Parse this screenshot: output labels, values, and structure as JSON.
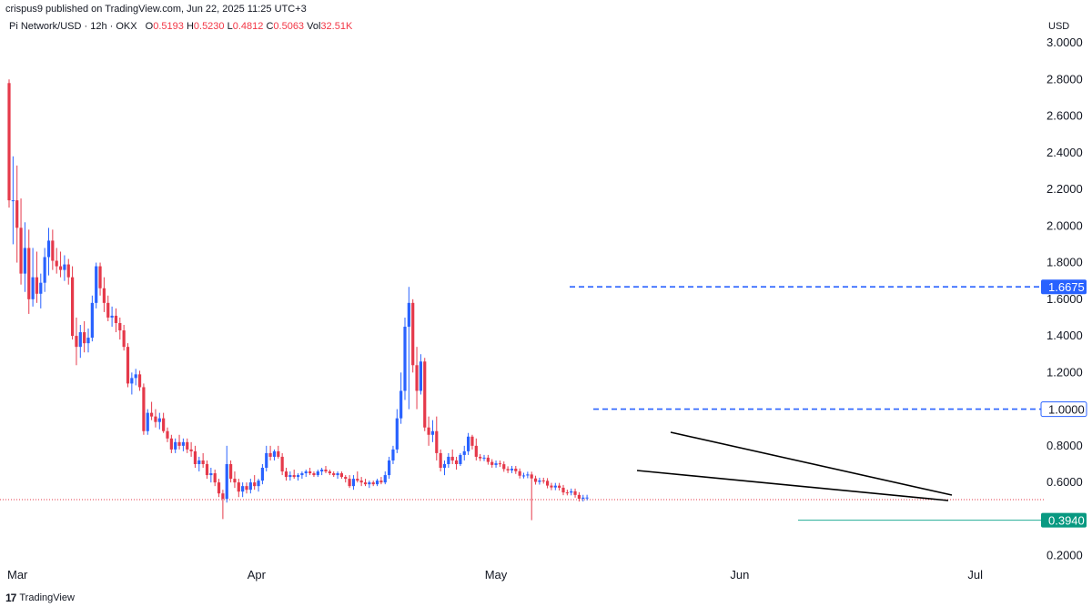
{
  "header": {
    "published": "crispus9 published on TradingView.com, Jun 22, 2025 11:25 UTC+3"
  },
  "legend": {
    "symbol": "Pi Network/USD · 12h · OKX",
    "o_key": "O",
    "o_val": "0.5193",
    "h_key": "H",
    "h_val": "0.5230",
    "l_key": "L",
    "l_val": "0.4812",
    "c_key": "C",
    "c_val": "0.5063",
    "vol_key": "Vol",
    "vol_val": "32.51K"
  },
  "footer": {
    "brand": "TradingView",
    "logo_mark": "17"
  },
  "colors": {
    "up": "#2962ff",
    "down": "#e5394a",
    "dashed": "#2962ff",
    "support": "#22ab94",
    "tag_blue": "#2962ff",
    "tag_green": "#089981",
    "trendline": "#000000",
    "axis_text": "#131722"
  },
  "chart_data": {
    "type": "candlestick",
    "title": "Pi Network/USD · 12h · OKX",
    "ylabel": "USD",
    "ylim": [
      0.12,
      3.1
    ],
    "y_ticks": [
      "3.0000",
      "2.8000",
      "2.6000",
      "2.4000",
      "2.2000",
      "2.0000",
      "1.8000",
      "1.6000",
      "1.4000",
      "1.2000",
      "1.0000",
      "0.8000",
      "0.6000",
      "0.4000",
      "0.2000"
    ],
    "x_labels": [
      {
        "label": "Mar",
        "bar": 0
      },
      {
        "label": "Apr",
        "bar": 62
      },
      {
        "label": "May",
        "bar": 122
      },
      {
        "label": "Jun",
        "bar": 184
      },
      {
        "label": "Jul",
        "bar": 244
      }
    ],
    "candles": [
      [
        2.78,
        2.8,
        2.1,
        2.14
      ],
      [
        2.14,
        2.38,
        1.9,
        2.14
      ],
      [
        2.14,
        2.33,
        1.8,
        1.99
      ],
      [
        1.99,
        2.15,
        1.68,
        1.74
      ],
      [
        1.74,
        2.02,
        1.64,
        1.88
      ],
      [
        1.88,
        1.98,
        1.52,
        1.6
      ],
      [
        1.6,
        1.88,
        1.56,
        1.72
      ],
      [
        1.72,
        1.86,
        1.58,
        1.63
      ],
      [
        1.63,
        1.74,
        1.55,
        1.69
      ],
      [
        1.69,
        1.88,
        1.64,
        1.83
      ],
      [
        1.83,
        1.99,
        1.73,
        1.92
      ],
      [
        1.92,
        1.98,
        1.76,
        1.81
      ],
      [
        1.81,
        1.88,
        1.74,
        1.78
      ],
      [
        1.78,
        1.86,
        1.72,
        1.76
      ],
      [
        1.76,
        1.84,
        1.7,
        1.79
      ],
      [
        1.79,
        1.82,
        1.68,
        1.72
      ],
      [
        1.72,
        1.78,
        1.38,
        1.4
      ],
      [
        1.4,
        1.5,
        1.24,
        1.34
      ],
      [
        1.34,
        1.46,
        1.28,
        1.42
      ],
      [
        1.42,
        1.48,
        1.31,
        1.36
      ],
      [
        1.36,
        1.44,
        1.31,
        1.39
      ],
      [
        1.39,
        1.62,
        1.37,
        1.58
      ],
      [
        1.58,
        1.8,
        1.55,
        1.78
      ],
      [
        1.78,
        1.8,
        1.62,
        1.66
      ],
      [
        1.66,
        1.72,
        1.53,
        1.58
      ],
      [
        1.58,
        1.62,
        1.48,
        1.5
      ],
      [
        1.5,
        1.56,
        1.45,
        1.51
      ],
      [
        1.51,
        1.55,
        1.42,
        1.47
      ],
      [
        1.47,
        1.5,
        1.38,
        1.43
      ],
      [
        1.43,
        1.46,
        1.32,
        1.34
      ],
      [
        1.34,
        1.36,
        1.12,
        1.14
      ],
      [
        1.14,
        1.2,
        1.08,
        1.17
      ],
      [
        1.17,
        1.22,
        1.13,
        1.19
      ],
      [
        1.19,
        1.21,
        1.1,
        1.12
      ],
      [
        1.12,
        1.14,
        0.86,
        0.88
      ],
      [
        0.88,
        1.0,
        0.86,
        0.98
      ],
      [
        0.98,
        1.04,
        0.94,
        0.96
      ],
      [
        0.96,
        1.0,
        0.9,
        0.93
      ],
      [
        0.93,
        0.98,
        0.89,
        0.95
      ],
      [
        0.95,
        0.98,
        0.87,
        0.88
      ],
      [
        0.88,
        0.9,
        0.82,
        0.84
      ],
      [
        0.84,
        0.86,
        0.76,
        0.78
      ],
      [
        0.78,
        0.84,
        0.76,
        0.82
      ],
      [
        0.82,
        0.86,
        0.78,
        0.8
      ],
      [
        0.8,
        0.84,
        0.77,
        0.82
      ],
      [
        0.82,
        0.84,
        0.76,
        0.78
      ],
      [
        0.78,
        0.82,
        0.74,
        0.77
      ],
      [
        0.77,
        0.8,
        0.68,
        0.7
      ],
      [
        0.7,
        0.74,
        0.66,
        0.72
      ],
      [
        0.72,
        0.76,
        0.68,
        0.7
      ],
      [
        0.7,
        0.72,
        0.62,
        0.64
      ],
      [
        0.64,
        0.68,
        0.6,
        0.65
      ],
      [
        0.65,
        0.67,
        0.58,
        0.6
      ],
      [
        0.6,
        0.62,
        0.52,
        0.54
      ],
      [
        0.54,
        0.56,
        0.4,
        0.51
      ],
      [
        0.51,
        0.8,
        0.49,
        0.7
      ],
      [
        0.7,
        0.72,
        0.6,
        0.62
      ],
      [
        0.62,
        0.66,
        0.57,
        0.6
      ],
      [
        0.6,
        0.62,
        0.52,
        0.55
      ],
      [
        0.55,
        0.6,
        0.52,
        0.58
      ],
      [
        0.58,
        0.6,
        0.54,
        0.56
      ],
      [
        0.56,
        0.62,
        0.54,
        0.6
      ],
      [
        0.6,
        0.64,
        0.56,
        0.58
      ],
      [
        0.58,
        0.62,
        0.55,
        0.61
      ],
      [
        0.61,
        0.7,
        0.59,
        0.68
      ],
      [
        0.68,
        0.8,
        0.66,
        0.76
      ],
      [
        0.76,
        0.8,
        0.72,
        0.74
      ],
      [
        0.74,
        0.78,
        0.72,
        0.77
      ],
      [
        0.77,
        0.8,
        0.73,
        0.74
      ],
      [
        0.74,
        0.76,
        0.64,
        0.66
      ],
      [
        0.66,
        0.68,
        0.61,
        0.63
      ],
      [
        0.63,
        0.66,
        0.61,
        0.64
      ],
      [
        0.64,
        0.67,
        0.62,
        0.63
      ],
      [
        0.63,
        0.65,
        0.61,
        0.64
      ],
      [
        0.64,
        0.66,
        0.62,
        0.65
      ],
      [
        0.65,
        0.67,
        0.63,
        0.66
      ],
      [
        0.66,
        0.68,
        0.64,
        0.65
      ],
      [
        0.65,
        0.66,
        0.63,
        0.64
      ],
      [
        0.64,
        0.67,
        0.63,
        0.66
      ],
      [
        0.66,
        0.68,
        0.64,
        0.67
      ],
      [
        0.67,
        0.69,
        0.65,
        0.66
      ],
      [
        0.66,
        0.67,
        0.64,
        0.65
      ],
      [
        0.65,
        0.66,
        0.63,
        0.64
      ],
      [
        0.64,
        0.66,
        0.62,
        0.65
      ],
      [
        0.65,
        0.66,
        0.62,
        0.63
      ],
      [
        0.63,
        0.64,
        0.6,
        0.62
      ],
      [
        0.62,
        0.64,
        0.57,
        0.58
      ],
      [
        0.58,
        0.64,
        0.56,
        0.62
      ],
      [
        0.62,
        0.66,
        0.6,
        0.61
      ],
      [
        0.61,
        0.63,
        0.58,
        0.6
      ],
      [
        0.6,
        0.62,
        0.58,
        0.59
      ],
      [
        0.59,
        0.61,
        0.57,
        0.6
      ],
      [
        0.6,
        0.61,
        0.58,
        0.59
      ],
      [
        0.59,
        0.62,
        0.58,
        0.61
      ],
      [
        0.61,
        0.63,
        0.59,
        0.6
      ],
      [
        0.6,
        0.66,
        0.59,
        0.64
      ],
      [
        0.64,
        0.74,
        0.62,
        0.72
      ],
      [
        0.72,
        0.8,
        0.7,
        0.78
      ],
      [
        0.78,
        1.0,
        0.76,
        0.95
      ],
      [
        0.95,
        1.2,
        0.92,
        1.1
      ],
      [
        1.1,
        1.5,
        1.05,
        1.45
      ],
      [
        1.45,
        1.6675,
        1.0,
        1.58
      ],
      [
        1.58,
        1.6,
        1.2,
        1.24
      ],
      [
        1.24,
        1.34,
        1.0,
        1.1
      ],
      [
        1.1,
        1.3,
        1.08,
        1.26
      ],
      [
        1.26,
        1.28,
        0.88,
        0.9
      ],
      [
        0.9,
        0.96,
        0.8,
        0.86
      ],
      [
        0.86,
        0.94,
        0.82,
        0.88
      ],
      [
        0.88,
        0.96,
        0.72,
        0.76
      ],
      [
        0.76,
        0.78,
        0.66,
        0.68
      ],
      [
        0.68,
        0.72,
        0.64,
        0.7
      ],
      [
        0.7,
        0.76,
        0.68,
        0.74
      ],
      [
        0.74,
        0.78,
        0.7,
        0.72
      ],
      [
        0.72,
        0.74,
        0.67,
        0.7
      ],
      [
        0.7,
        0.76,
        0.69,
        0.75
      ],
      [
        0.75,
        0.8,
        0.72,
        0.77
      ],
      [
        0.77,
        0.87,
        0.75,
        0.85
      ],
      [
        0.85,
        0.86,
        0.78,
        0.8
      ],
      [
        0.8,
        0.84,
        0.72,
        0.74
      ]
    ],
    "tail_candles_note": "",
    "levels": [
      {
        "label": "1.6675",
        "value": 1.6675,
        "style": "dashed"
      },
      {
        "label": "1.0000",
        "value": 1.0,
        "style": "dashed"
      },
      {
        "label": "0.3940",
        "value": 0.394,
        "style": "support"
      }
    ],
    "current_price": 0.5063,
    "grid": false
  }
}
